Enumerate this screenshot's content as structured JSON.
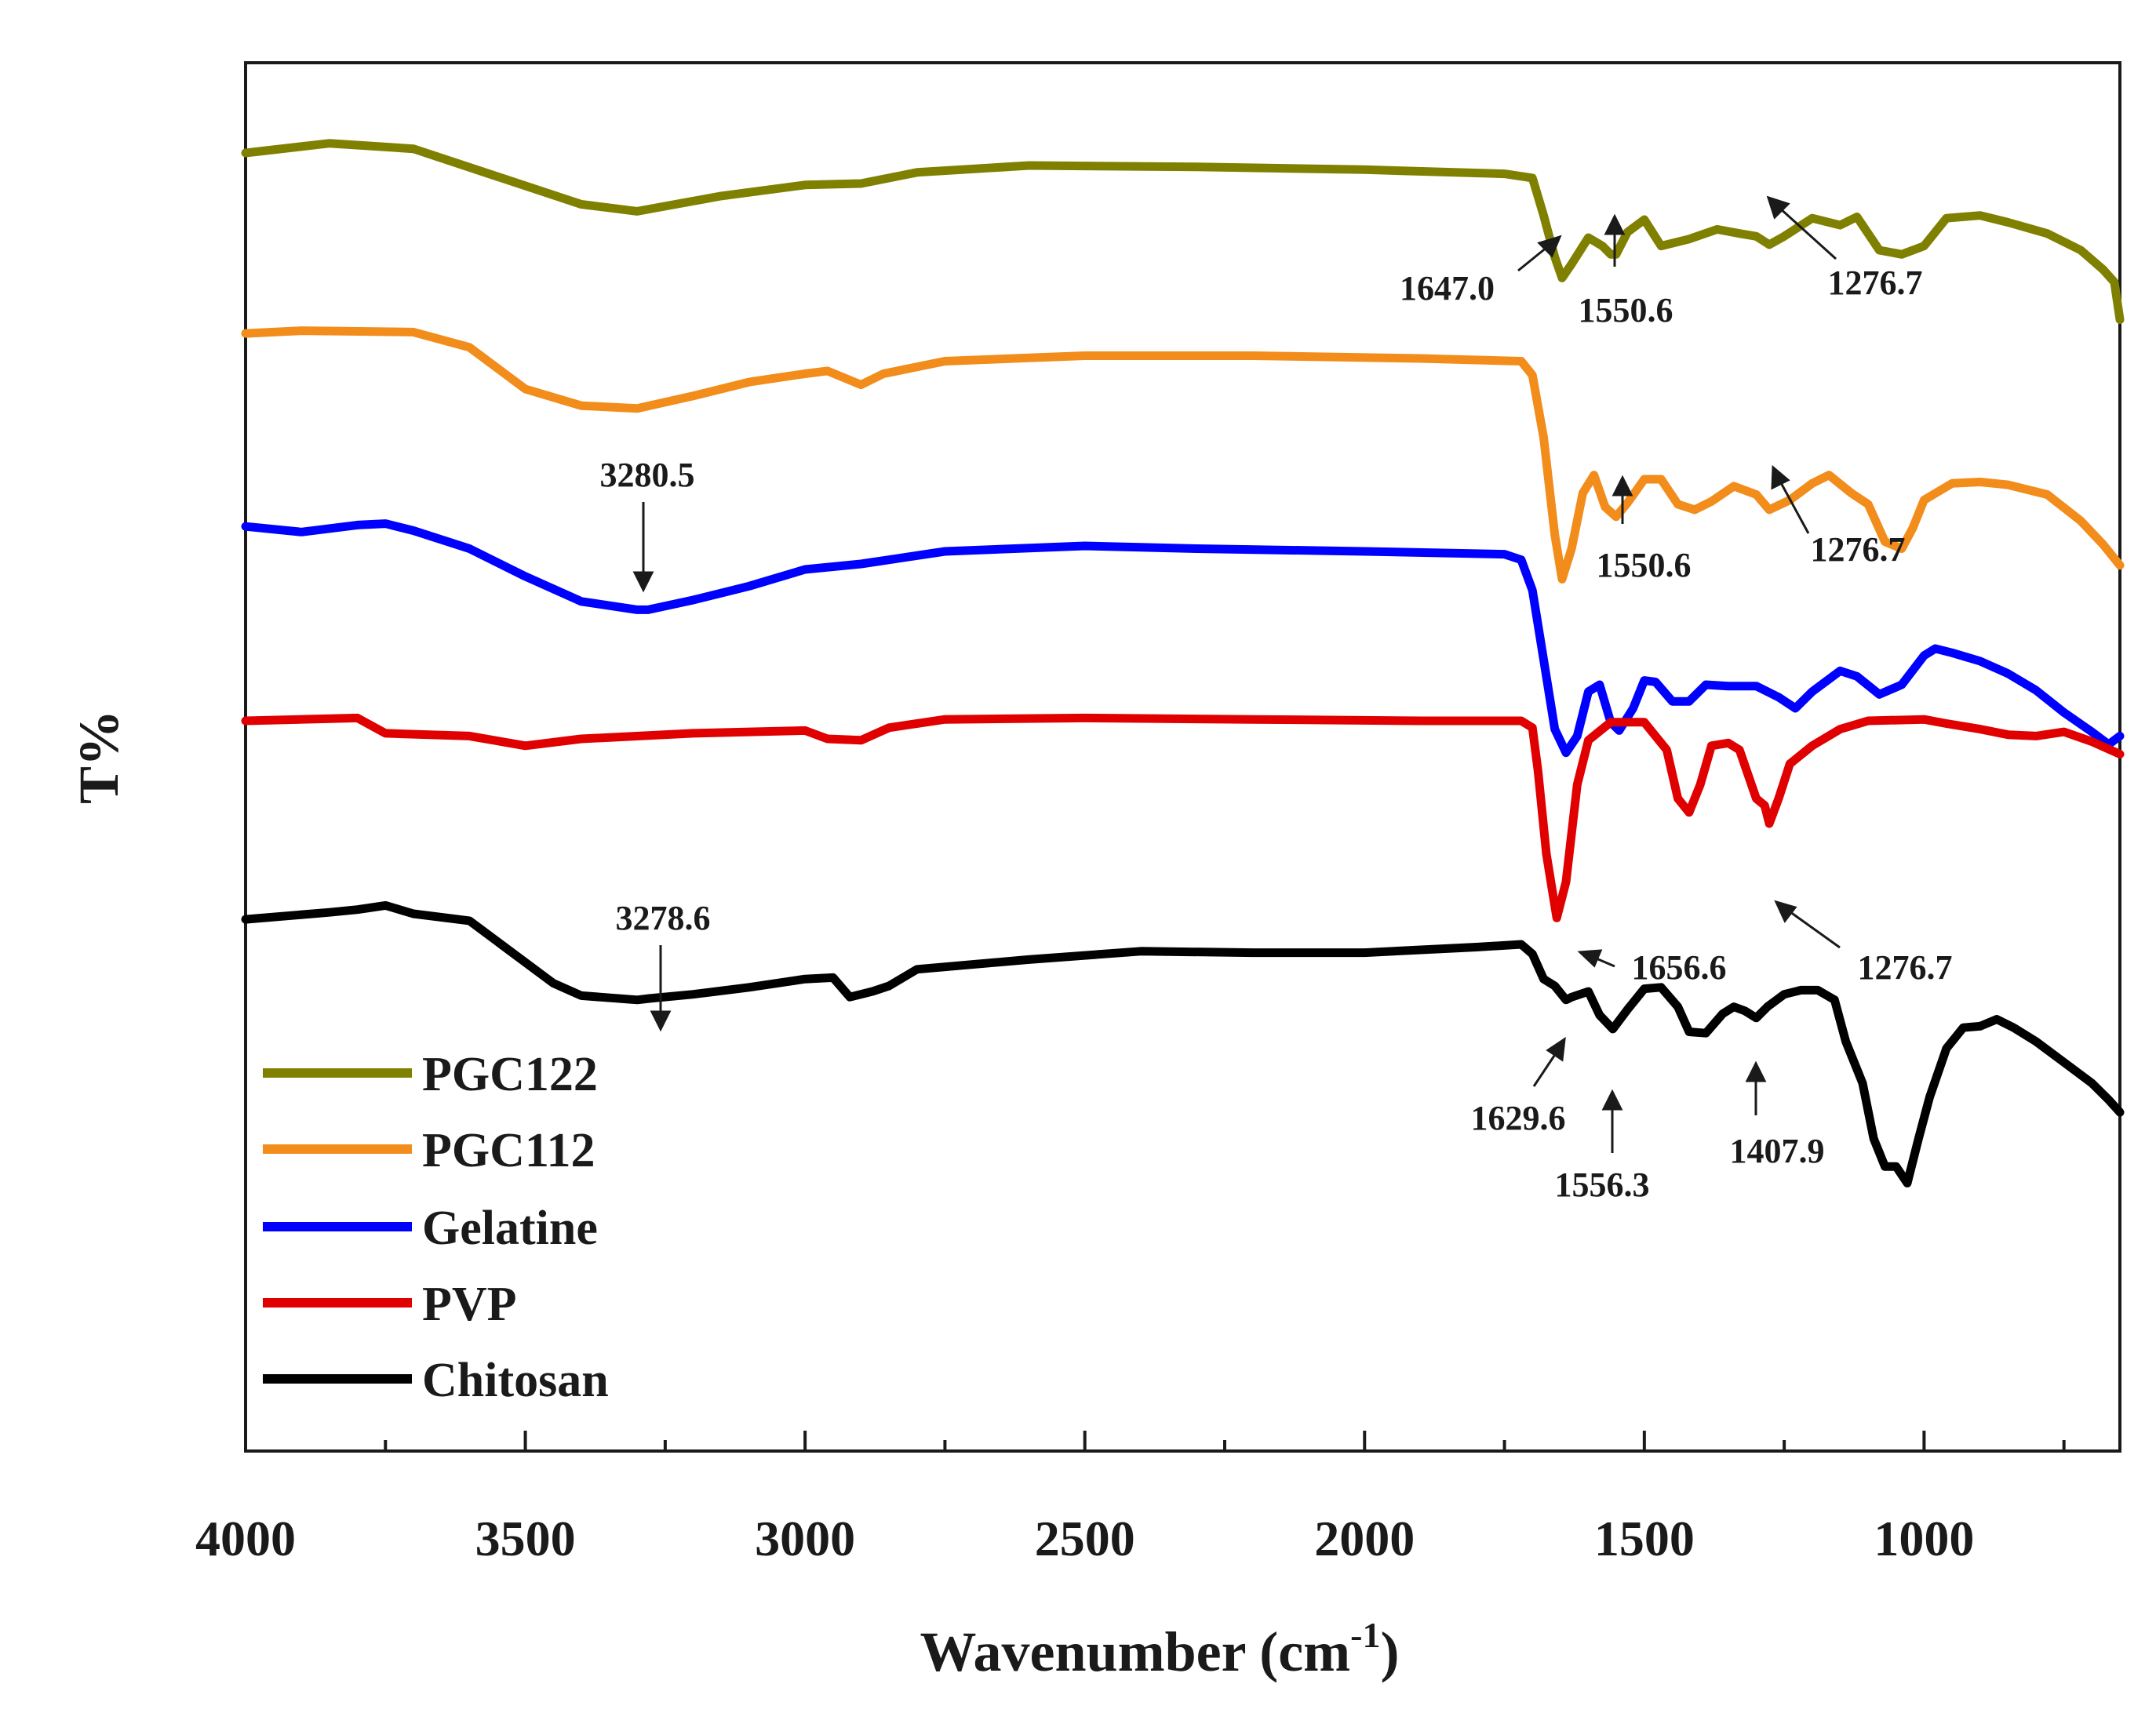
{
  "chart_data": {
    "type": "line",
    "title": "",
    "xlabel": "Wavenumber (cm",
    "xlabel_sup": "-1",
    "xlabel_close": ")",
    "ylabel": "T%",
    "xlim": [
      4000,
      650
    ],
    "x_reversed": true,
    "ylim": [
      0,
      100
    ],
    "grid": false,
    "x_ticks": [
      4000,
      3500,
      3000,
      2500,
      2000,
      1500,
      1000
    ],
    "x_tick_labels": [
      "4000",
      "3500",
      "3000",
      "2500",
      "2000",
      "1500",
      "1000"
    ],
    "x_minor_ticks": [
      3750,
      3250,
      2750,
      2250,
      1750,
      1250,
      750
    ],
    "legend_position": "bottom-left",
    "series": [
      {
        "name": "PGC122",
        "color": "#808000",
        "points": [
          [
            4000,
            93.5
          ],
          [
            3850,
            94.2
          ],
          [
            3700,
            93.8
          ],
          [
            3550,
            91.8
          ],
          [
            3400,
            89.8
          ],
          [
            3300,
            89.3
          ],
          [
            3150,
            90.4
          ],
          [
            3000,
            91.2
          ],
          [
            2900,
            91.3
          ],
          [
            2800,
            92.1
          ],
          [
            2600,
            92.6
          ],
          [
            2300,
            92.5
          ],
          [
            2000,
            92.3
          ],
          [
            1750,
            92.0
          ],
          [
            1700,
            91.7
          ],
          [
            1680,
            89
          ],
          [
            1660,
            86
          ],
          [
            1647,
            84.5
          ],
          [
            1630,
            85.5
          ],
          [
            1600,
            87.4
          ],
          [
            1575,
            86.8
          ],
          [
            1560,
            86.2
          ],
          [
            1550.6,
            86.2
          ],
          [
            1530,
            87.8
          ],
          [
            1500,
            88.7
          ],
          [
            1470,
            86.8
          ],
          [
            1420,
            87.3
          ],
          [
            1370,
            88
          ],
          [
            1330,
            87.7
          ],
          [
            1300,
            87.5
          ],
          [
            1276.7,
            86.9
          ],
          [
            1250,
            87.5
          ],
          [
            1200,
            88.8
          ],
          [
            1150,
            88.3
          ],
          [
            1120,
            88.9
          ],
          [
            1080,
            86.5
          ],
          [
            1040,
            86.2
          ],
          [
            1000,
            86.8
          ],
          [
            960,
            88.8
          ],
          [
            900,
            89.0
          ],
          [
            850,
            88.5
          ],
          [
            780,
            87.7
          ],
          [
            720,
            86.5
          ],
          [
            680,
            85.1
          ],
          [
            660,
            84.2
          ],
          [
            650,
            81.5
          ]
        ]
      },
      {
        "name": "PGC112",
        "color": "#F28C1B",
        "points": [
          [
            4000,
            80.5
          ],
          [
            3900,
            80.7
          ],
          [
            3700,
            80.6
          ],
          [
            3600,
            79.5
          ],
          [
            3500,
            76.5
          ],
          [
            3400,
            75.3
          ],
          [
            3300,
            75.1
          ],
          [
            3200,
            76.0
          ],
          [
            3100,
            77.0
          ],
          [
            3000,
            77.6
          ],
          [
            2960,
            77.8
          ],
          [
            2900,
            76.8
          ],
          [
            2860,
            77.6
          ],
          [
            2750,
            78.5
          ],
          [
            2500,
            78.9
          ],
          [
            2200,
            78.9
          ],
          [
            1900,
            78.7
          ],
          [
            1720,
            78.5
          ],
          [
            1700,
            77.5
          ],
          [
            1680,
            73
          ],
          [
            1660,
            66
          ],
          [
            1647,
            62.8
          ],
          [
            1630,
            65
          ],
          [
            1610,
            69
          ],
          [
            1590,
            70.3
          ],
          [
            1570,
            68
          ],
          [
            1550.6,
            67.3
          ],
          [
            1530,
            68.3
          ],
          [
            1500,
            70
          ],
          [
            1470,
            70
          ],
          [
            1440,
            68.2
          ],
          [
            1410,
            67.8
          ],
          [
            1380,
            68.4
          ],
          [
            1340,
            69.5
          ],
          [
            1300,
            68.9
          ],
          [
            1276.7,
            67.8
          ],
          [
            1240,
            68.5
          ],
          [
            1200,
            69.7
          ],
          [
            1170,
            70.3
          ],
          [
            1130,
            69
          ],
          [
            1100,
            68.2
          ],
          [
            1070,
            65.5
          ],
          [
            1040,
            65.0
          ],
          [
            1020,
            66.5
          ],
          [
            1000,
            68.5
          ],
          [
            950,
            69.7
          ],
          [
            900,
            69.8
          ],
          [
            850,
            69.6
          ],
          [
            780,
            68.9
          ],
          [
            720,
            67
          ],
          [
            680,
            65.3
          ],
          [
            660,
            64.3
          ],
          [
            650,
            63.8
          ]
        ]
      },
      {
        "name": "Gelatine",
        "color": "#0000FF",
        "points": [
          [
            4000,
            66.6
          ],
          [
            3900,
            66.2
          ],
          [
            3800,
            66.7
          ],
          [
            3750,
            66.8
          ],
          [
            3700,
            66.3
          ],
          [
            3600,
            65.0
          ],
          [
            3500,
            63.0
          ],
          [
            3400,
            61.2
          ],
          [
            3300,
            60.6
          ],
          [
            3280.5,
            60.6
          ],
          [
            3200,
            61.3
          ],
          [
            3100,
            62.3
          ],
          [
            3000,
            63.5
          ],
          [
            2900,
            63.9
          ],
          [
            2750,
            64.8
          ],
          [
            2500,
            65.2
          ],
          [
            2300,
            65.0
          ],
          [
            2000,
            64.8
          ],
          [
            1750,
            64.6
          ],
          [
            1720,
            64.2
          ],
          [
            1700,
            62
          ],
          [
            1680,
            57
          ],
          [
            1660,
            52
          ],
          [
            1640,
            50.3
          ],
          [
            1620,
            51.5
          ],
          [
            1600,
            54.7
          ],
          [
            1580,
            55.2
          ],
          [
            1560,
            52.5
          ],
          [
            1545,
            51.9
          ],
          [
            1520,
            53.5
          ],
          [
            1500,
            55.5
          ],
          [
            1480,
            55.4
          ],
          [
            1450,
            54
          ],
          [
            1420,
            54
          ],
          [
            1390,
            55.2
          ],
          [
            1350,
            55.1
          ],
          [
            1300,
            55.1
          ],
          [
            1260,
            54.3
          ],
          [
            1230,
            53.5
          ],
          [
            1200,
            54.7
          ],
          [
            1150,
            56.2
          ],
          [
            1120,
            55.8
          ],
          [
            1080,
            54.5
          ],
          [
            1040,
            55.2
          ],
          [
            1000,
            57.3
          ],
          [
            980,
            57.8
          ],
          [
            950,
            57.5
          ],
          [
            900,
            56.9
          ],
          [
            850,
            56.0
          ],
          [
            800,
            54.8
          ],
          [
            750,
            53.2
          ],
          [
            700,
            51.8
          ],
          [
            670,
            50.9
          ],
          [
            650,
            51.5
          ]
        ]
      },
      {
        "name": "PVP",
        "color": "#E00000",
        "points": [
          [
            4000,
            52.6
          ],
          [
            3800,
            52.8
          ],
          [
            3750,
            51.7
          ],
          [
            3600,
            51.5
          ],
          [
            3500,
            50.8
          ],
          [
            3400,
            51.3
          ],
          [
            3200,
            51.7
          ],
          [
            3000,
            51.9
          ],
          [
            2960,
            51.3
          ],
          [
            2900,
            51.2
          ],
          [
            2850,
            52.1
          ],
          [
            2750,
            52.7
          ],
          [
            2500,
            52.8
          ],
          [
            2200,
            52.7
          ],
          [
            1900,
            52.6
          ],
          [
            1720,
            52.6
          ],
          [
            1700,
            52.1
          ],
          [
            1690,
            49
          ],
          [
            1675,
            43
          ],
          [
            1656.6,
            38.4
          ],
          [
            1640,
            41
          ],
          [
            1620,
            48
          ],
          [
            1600,
            51.2
          ],
          [
            1560,
            52.5
          ],
          [
            1500,
            52.5
          ],
          [
            1460,
            50.5
          ],
          [
            1440,
            47
          ],
          [
            1420,
            46.0
          ],
          [
            1400,
            48
          ],
          [
            1380,
            50.8
          ],
          [
            1350,
            51.0
          ],
          [
            1330,
            50.5
          ],
          [
            1300,
            47
          ],
          [
            1285,
            46.5
          ],
          [
            1276.7,
            45.2
          ],
          [
            1260,
            47
          ],
          [
            1240,
            49.5
          ],
          [
            1200,
            50.8
          ],
          [
            1150,
            52.0
          ],
          [
            1100,
            52.6
          ],
          [
            1000,
            52.7
          ],
          [
            960,
            52.4
          ],
          [
            900,
            52.0
          ],
          [
            850,
            51.6
          ],
          [
            800,
            51.5
          ],
          [
            750,
            51.8
          ],
          [
            700,
            51.1
          ],
          [
            650,
            50.2
          ]
        ]
      },
      {
        "name": "Chitosan",
        "color": "#000000",
        "points": [
          [
            4000,
            38.3
          ],
          [
            3850,
            38.8
          ],
          [
            3800,
            39.0
          ],
          [
            3750,
            39.3
          ],
          [
            3700,
            38.7
          ],
          [
            3600,
            38.2
          ],
          [
            3550,
            36.7
          ],
          [
            3450,
            33.7
          ],
          [
            3400,
            32.8
          ],
          [
            3300,
            32.5
          ],
          [
            3278.6,
            32.6
          ],
          [
            3200,
            32.9
          ],
          [
            3100,
            33.4
          ],
          [
            3000,
            34.0
          ],
          [
            2950,
            34.1
          ],
          [
            2920,
            32.7
          ],
          [
            2880,
            33.1
          ],
          [
            2850,
            33.5
          ],
          [
            2800,
            34.7
          ],
          [
            2600,
            35.4
          ],
          [
            2400,
            36.0
          ],
          [
            2200,
            35.9
          ],
          [
            2000,
            35.9
          ],
          [
            1800,
            36.3
          ],
          [
            1720,
            36.5
          ],
          [
            1700,
            35.8
          ],
          [
            1680,
            34.0
          ],
          [
            1660,
            33.5
          ],
          [
            1640,
            32.5
          ],
          [
            1629.6,
            32.7
          ],
          [
            1600,
            33.1
          ],
          [
            1580,
            31.4
          ],
          [
            1556.3,
            30.4
          ],
          [
            1530,
            31.8
          ],
          [
            1500,
            33.3
          ],
          [
            1470,
            33.4
          ],
          [
            1440,
            32.0
          ],
          [
            1420,
            30.2
          ],
          [
            1390,
            30.1
          ],
          [
            1360,
            31.5
          ],
          [
            1340,
            32.0
          ],
          [
            1320,
            31.7
          ],
          [
            1300,
            31.2
          ],
          [
            1280,
            32.0
          ],
          [
            1250,
            32.9
          ],
          [
            1220,
            33.2
          ],
          [
            1190,
            33.2
          ],
          [
            1160,
            32.5
          ],
          [
            1140,
            29.5
          ],
          [
            1110,
            26.5
          ],
          [
            1090,
            22.5
          ],
          [
            1070,
            20.5
          ],
          [
            1050,
            20.5
          ],
          [
            1030,
            19.3
          ],
          [
            1010,
            22.5
          ],
          [
            990,
            25.5
          ],
          [
            960,
            29.0
          ],
          [
            930,
            30.5
          ],
          [
            900,
            30.6
          ],
          [
            870,
            31.1
          ],
          [
            840,
            30.5
          ],
          [
            800,
            29.5
          ],
          [
            750,
            28.0
          ],
          [
            700,
            26.5
          ],
          [
            670,
            25.3
          ],
          [
            650,
            24.4
          ]
        ]
      }
    ],
    "annotations": [
      {
        "label": "1647.0",
        "series": "PGC122",
        "x": 1647.0
      },
      {
        "label": "1550.6",
        "series": "PGC122",
        "x": 1550.6
      },
      {
        "label": "1276.7",
        "series": "PGC122",
        "x": 1276.7
      },
      {
        "label": "3280.5",
        "series": "Gelatine",
        "x": 3280.5
      },
      {
        "label": "1550.6",
        "series": "PGC112",
        "x": 1550.6
      },
      {
        "label": "1276.7",
        "series": "PGC112",
        "x": 1276.7
      },
      {
        "label": "1656.6",
        "series": "PVP",
        "x": 1656.6
      },
      {
        "label": "1276.7",
        "series": "PVP",
        "x": 1276.7
      },
      {
        "label": "3278.6",
        "series": "Chitosan",
        "x": 3278.6
      },
      {
        "label": "1629.6",
        "series": "Chitosan",
        "x": 1629.6
      },
      {
        "label": "1556.3",
        "series": "Chitosan",
        "x": 1556.3
      },
      {
        "label": "1407.9",
        "series": "Chitosan",
        "x": 1407.9
      }
    ]
  }
}
